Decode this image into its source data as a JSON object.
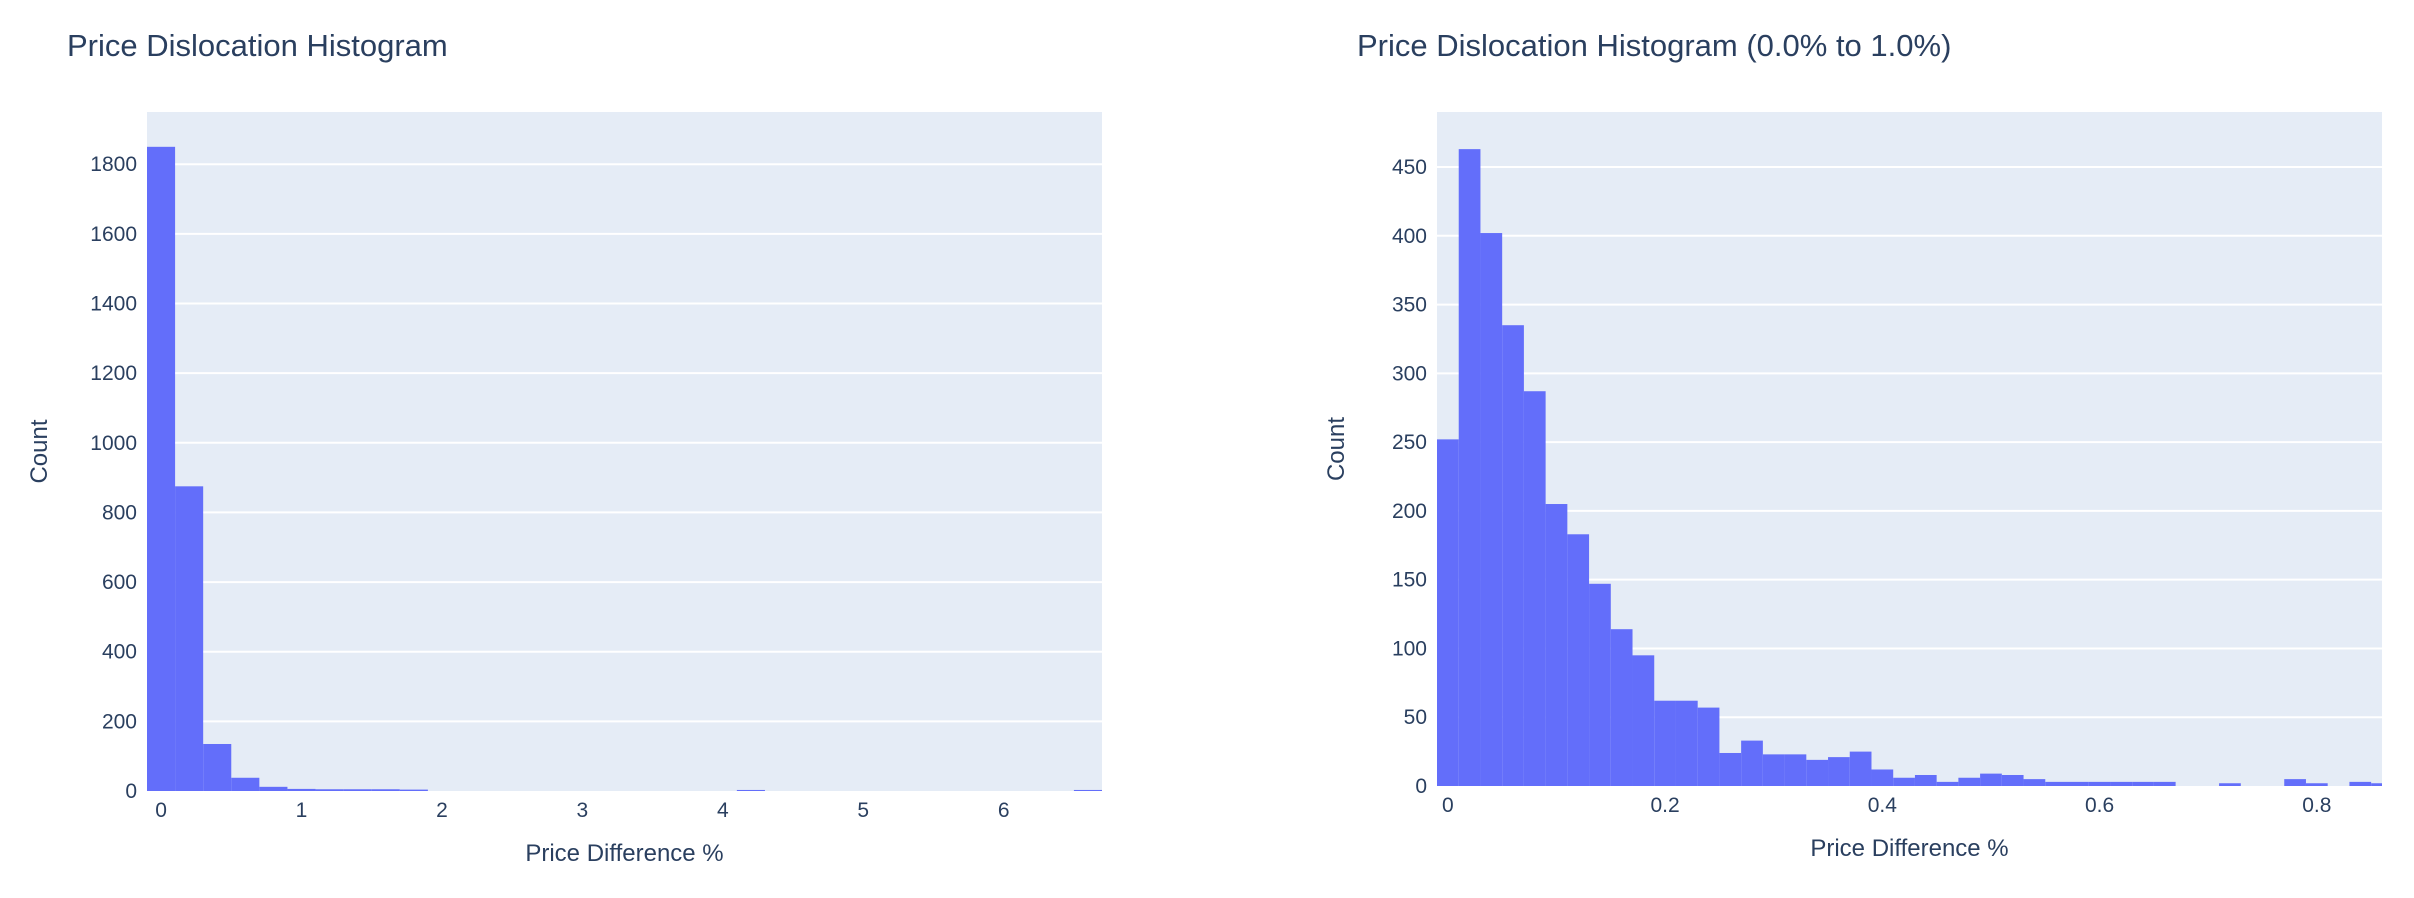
{
  "charts": {
    "left": {
      "title": "Price Dislocation Histogram"
    },
    "right": {
      "title": "Price Dislocation Histogram (0.0% to 1.0%)"
    }
  },
  "colors": {
    "bar": "#636efa",
    "plot_bg": "#e5ecf6",
    "grid": "#ffffff",
    "text": "#2a3f5f"
  },
  "chart_data": [
    {
      "type": "bar",
      "title": "Price Dislocation Histogram",
      "xlabel": "Price Difference %",
      "ylabel": "Count",
      "bin_width": 0.2,
      "bin_starts": [
        -0.1,
        0.1,
        0.3,
        0.5,
        0.7,
        0.9,
        1.1,
        1.3,
        1.5,
        1.7,
        4.1,
        6.5
      ],
      "values": [
        1850,
        875,
        135,
        38,
        12,
        6,
        5,
        5,
        5,
        4,
        3,
        3
      ],
      "xlim": [
        -0.1,
        6.7
      ],
      "ylim": [
        0,
        1950
      ],
      "x_ticks": [
        0,
        1,
        2,
        3,
        4,
        5,
        6
      ],
      "y_ticks": [
        0,
        200,
        400,
        600,
        800,
        1000,
        1200,
        1400,
        1600,
        1800
      ],
      "grid": true,
      "legend": "none"
    },
    {
      "type": "bar",
      "title": "Price Dislocation Histogram (0.0% to 1.0%)",
      "xlabel": "Price Difference %",
      "ylabel": "Count",
      "bin_width": 0.02,
      "bin_starts": [
        -0.01,
        0.01,
        0.03,
        0.05,
        0.07,
        0.09,
        0.11,
        0.13,
        0.15,
        0.17,
        0.19,
        0.21,
        0.23,
        0.25,
        0.27,
        0.29,
        0.31,
        0.33,
        0.35,
        0.37,
        0.39,
        0.41,
        0.43,
        0.45,
        0.47,
        0.49,
        0.51,
        0.53,
        0.55,
        0.57,
        0.59,
        0.61,
        0.63,
        0.65,
        0.67,
        0.69,
        0.71,
        0.73,
        0.75,
        0.77,
        0.79,
        0.81,
        0.83,
        0.85
      ],
      "values": [
        252,
        463,
        402,
        335,
        287,
        205,
        183,
        147,
        114,
        95,
        62,
        62,
        57,
        24,
        33,
        23,
        23,
        19,
        21,
        25,
        12,
        6,
        8,
        3,
        6,
        9,
        8,
        5,
        3,
        3,
        3,
        3,
        3,
        3,
        0,
        0,
        2,
        0,
        0,
        5,
        2,
        0,
        3,
        2
      ],
      "xlim": [
        -0.01,
        0.86
      ],
      "ylim": [
        0,
        490
      ],
      "x_ticks": [
        0,
        0.2,
        0.4,
        0.6,
        0.8
      ],
      "y_ticks": [
        0,
        50,
        100,
        150,
        200,
        250,
        300,
        350,
        400,
        450
      ],
      "grid": true,
      "legend": "none"
    }
  ]
}
